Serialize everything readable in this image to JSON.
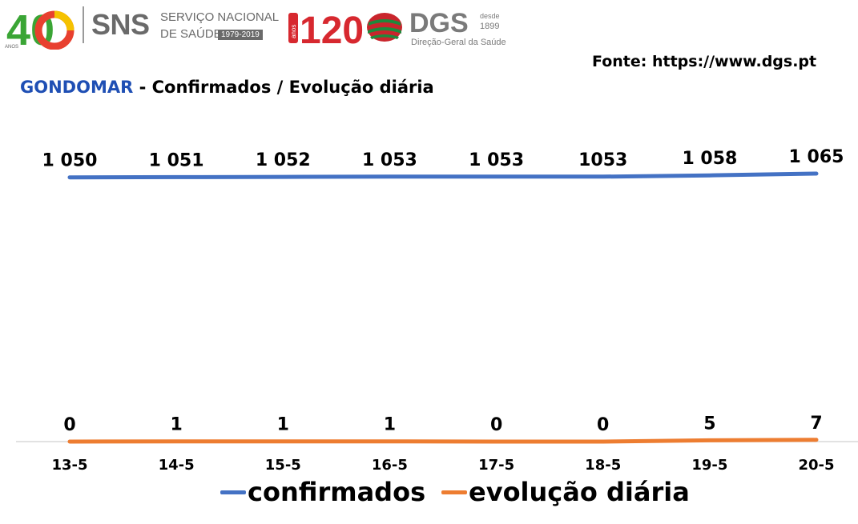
{
  "header": {
    "logo_40": "40",
    "logo_40_small": "ANOS",
    "sns_name": "SNS",
    "sns_line1": "SERVIÇO NACIONAL",
    "sns_line2": "DE SAÚDE",
    "sns_years": "1979-2019",
    "logo_120": "120",
    "logo_120_small": "anos",
    "dgs_name": "DGS",
    "dgs_desde": "desde",
    "dgs_year": "1899",
    "dgs_sub": "Direção-Geral da Saúde"
  },
  "source": "Fonte: https://www.dgs.pt",
  "title": {
    "place": "GONDOMAR",
    "rest": " - Confirmados / Evolução diária"
  },
  "colors": {
    "confirmados": "#4472c4",
    "evolucao": "#ed7d31",
    "title_place": "#1f4fb4",
    "axis": "#d9d9d9"
  },
  "chart_data": {
    "type": "line",
    "categories": [
      "13-5",
      "14-5",
      "15-5",
      "16-5",
      "17-5",
      "18-5",
      "19-5",
      "20-5"
    ],
    "series": [
      {
        "name": "confirmados",
        "values": [
          1050,
          1051,
          1052,
          1053,
          1053,
          1053,
          1058,
          1065
        ],
        "labels": [
          "1 050",
          "1 051",
          "1 052",
          "1 053",
          "1 053",
          "1053",
          "1 058",
          "1 065"
        ]
      },
      {
        "name": "evolução diária",
        "values": [
          0,
          1,
          1,
          1,
          0,
          0,
          5,
          7
        ],
        "labels": [
          "0",
          "1",
          "1",
          "1",
          "0",
          "0",
          "5",
          "7"
        ]
      }
    ],
    "title": "GONDOMAR - Confirmados / Evolução diária",
    "legend": "bottom",
    "grid": false,
    "ylim": [
      0,
      1065
    ]
  }
}
